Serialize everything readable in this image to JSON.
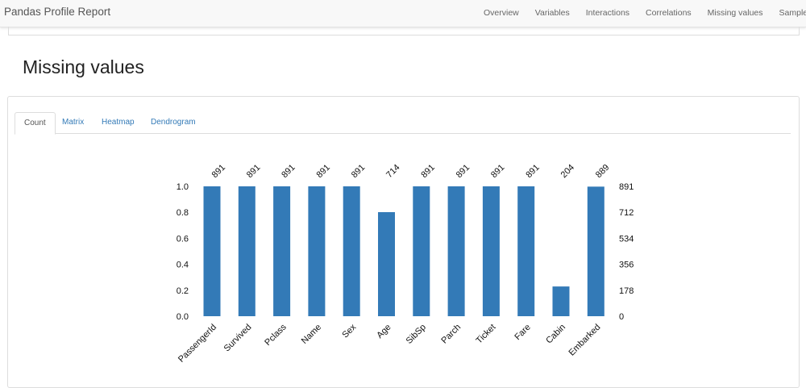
{
  "app": {
    "brand": "Pandas Profile Report"
  },
  "nav": {
    "items": [
      "Overview",
      "Variables",
      "Interactions",
      "Correlations",
      "Missing values",
      "Sample"
    ]
  },
  "section": {
    "title": "Missing values"
  },
  "tabs": [
    "Count",
    "Matrix",
    "Heatmap",
    "Dendrogram"
  ],
  "active_tab": "Count",
  "colors": {
    "bar": "#337ab7",
    "link": "#337ab7"
  },
  "chart_data": {
    "type": "bar",
    "categories": [
      "PassengerId",
      "Survived",
      "Pclass",
      "Name",
      "Sex",
      "Age",
      "SibSp",
      "Parch",
      "Ticket",
      "Fare",
      "Cabin",
      "Embarked"
    ],
    "values": [
      891,
      891,
      891,
      891,
      891,
      714,
      891,
      891,
      891,
      891,
      204,
      889
    ],
    "total": 891,
    "left_ticks": [
      "0.0",
      "0.2",
      "0.4",
      "0.6",
      "0.8",
      "1.0"
    ],
    "right_ticks": [
      "0",
      "178",
      "356",
      "534",
      "712",
      "891"
    ],
    "ylim": [
      0,
      1
    ],
    "grid": false
  }
}
